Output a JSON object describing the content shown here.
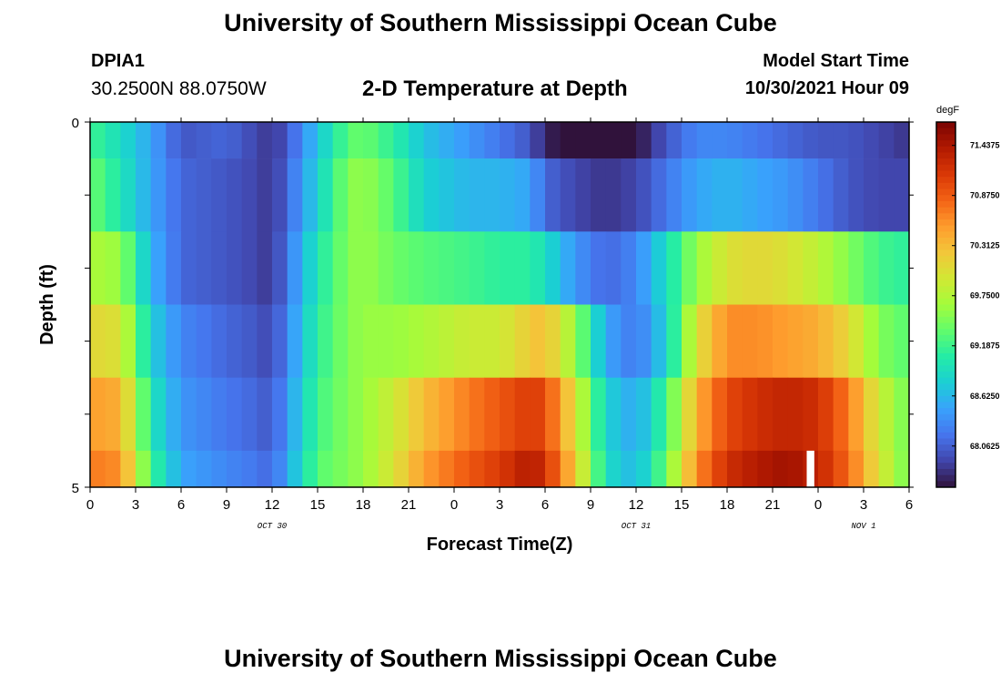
{
  "header": {
    "title": "University of Southern Mississippi Ocean Cube",
    "station": "DPIA1",
    "coords": "30.2500N  88.0750W",
    "subtitle": "2-D Temperature at Depth",
    "model_start_label": "Model Start Time",
    "model_start_value": "10/30/2021 Hour 09"
  },
  "footer": {
    "title": "University of Southern Mississippi Ocean Cube"
  },
  "chart_data": {
    "type": "heatmap",
    "title": "2-D Temperature at Depth",
    "xlabel": "Forecast Time(Z)",
    "ylabel": "Depth (ft)",
    "x_tick_labels": [
      "0",
      "3",
      "6",
      "9",
      "12",
      "15",
      "18",
      "21",
      "0",
      "3",
      "6",
      "9",
      "12",
      "15",
      "18",
      "21",
      "0",
      "3",
      "6"
    ],
    "x_day_labels": [
      {
        "label": "OCT 30",
        "hour": 12
      },
      {
        "label": "OCT 31",
        "hour": 36
      },
      {
        "label": "NOV 1",
        "hour": 51
      }
    ],
    "xlim": [
      0,
      54
    ],
    "y_tick_labels": [
      "0",
      "5"
    ],
    "ylim": [
      0,
      5
    ],
    "colorbar": {
      "unit": "degF",
      "labels": [
        "71.4375",
        "70.8750",
        "70.3125",
        "69.7500",
        "69.1875",
        "68.6250",
        "68.0625"
      ],
      "range": [
        67.6,
        71.7
      ],
      "colors": [
        "#30123b",
        "#4145ab",
        "#4675ed",
        "#39a2fc",
        "#1bcfd4",
        "#24eca6",
        "#61fc6c",
        "#a4fc3b",
        "#d1e834",
        "#f3c63a",
        "#fe9b2d",
        "#f36315",
        "#d93806",
        "#b11901",
        "#7a0403"
      ]
    },
    "depth_layers": [
      0,
      1,
      2,
      3,
      4,
      5
    ],
    "gap": {
      "hour": 47.5,
      "layer": 5,
      "width_hours": 0.5
    },
    "series": [
      {
        "depth_index": 0,
        "t": [
          0,
          2,
          4,
          6,
          9,
          11,
          12,
          13,
          15,
          17,
          18,
          20,
          22,
          25,
          27,
          29,
          30,
          32,
          34,
          36,
          38,
          40,
          42,
          44,
          46,
          48,
          50,
          52,
          54
        ],
        "values": [
          69.2,
          68.9,
          68.5,
          68.0,
          68.1,
          67.9,
          67.8,
          68.0,
          68.7,
          69.3,
          69.4,
          69.1,
          68.7,
          68.4,
          68.2,
          68.0,
          67.7,
          67.5,
          67.4,
          67.6,
          68.0,
          68.3,
          68.3,
          68.2,
          68.1,
          68.0,
          68.0,
          67.9,
          67.8
        ]
      },
      {
        "depth_index": 1,
        "t": [
          0,
          2,
          4,
          6,
          9,
          11,
          12,
          13,
          15,
          17,
          18,
          20,
          22,
          25,
          27,
          29,
          30,
          32,
          34,
          36,
          38,
          40,
          42,
          44,
          46,
          48,
          50,
          52,
          54
        ],
        "values": [
          69.4,
          69.0,
          68.5,
          68.1,
          68.0,
          67.9,
          67.8,
          68.1,
          68.8,
          69.5,
          69.6,
          69.3,
          68.8,
          68.6,
          68.6,
          68.5,
          68.1,
          67.9,
          67.8,
          67.9,
          68.2,
          68.5,
          68.6,
          68.5,
          68.4,
          68.2,
          68.0,
          67.9,
          67.9
        ]
      },
      {
        "depth_index": 2,
        "t": [
          0,
          2,
          4,
          6,
          9,
          11,
          12,
          13,
          15,
          17,
          18,
          20,
          22,
          25,
          27,
          29,
          30,
          32,
          34,
          36,
          38,
          40,
          42,
          44,
          46,
          48,
          50,
          52,
          54
        ],
        "values": [
          69.7,
          69.6,
          68.6,
          68.1,
          68.0,
          67.9,
          67.8,
          68.2,
          69.0,
          69.5,
          69.6,
          69.4,
          69.3,
          69.2,
          69.1,
          69.1,
          68.9,
          68.4,
          68.1,
          68.3,
          68.9,
          69.6,
          70.0,
          70.1,
          70.0,
          69.8,
          69.5,
          69.2,
          69.1
        ]
      },
      {
        "depth_index": 3,
        "t": [
          0,
          2,
          4,
          6,
          9,
          11,
          12,
          13,
          15,
          17,
          18,
          20,
          22,
          25,
          27,
          29,
          30,
          32,
          34,
          36,
          38,
          40,
          42,
          44,
          46,
          48,
          50,
          52,
          54
        ],
        "values": [
          70.1,
          70.0,
          68.8,
          68.3,
          68.1,
          68.0,
          67.9,
          68.3,
          69.1,
          69.5,
          69.6,
          69.6,
          69.7,
          69.9,
          69.9,
          70.2,
          70.3,
          69.6,
          68.5,
          68.2,
          68.8,
          70.0,
          70.6,
          70.6,
          70.5,
          70.4,
          70.1,
          69.5,
          69.3
        ]
      },
      {
        "depth_index": 4,
        "t": [
          0,
          2,
          4,
          6,
          9,
          11,
          12,
          13,
          15,
          17,
          18,
          20,
          22,
          25,
          27,
          29,
          30,
          32,
          34,
          36,
          38,
          40,
          42,
          44,
          46,
          48,
          50,
          52,
          54
        ],
        "values": [
          70.5,
          70.4,
          69.0,
          68.4,
          68.2,
          68.1,
          68.0,
          68.4,
          69.2,
          69.5,
          69.6,
          69.9,
          70.3,
          70.7,
          70.9,
          71.1,
          71.0,
          70.0,
          68.8,
          68.5,
          69.2,
          70.4,
          71.0,
          71.2,
          71.3,
          71.2,
          70.7,
          69.9,
          69.4
        ]
      },
      {
        "depth_index": 5,
        "t": [
          0,
          2,
          4,
          6,
          9,
          11,
          12,
          13,
          15,
          17,
          18,
          20,
          22,
          25,
          27,
          29,
          30,
          32,
          34,
          36,
          38,
          40,
          42,
          44,
          46,
          48,
          50,
          52,
          54
        ],
        "values": [
          70.7,
          70.6,
          69.2,
          68.5,
          68.3,
          68.2,
          68.1,
          68.5,
          69.3,
          69.5,
          69.6,
          70.0,
          70.5,
          70.9,
          71.1,
          71.4,
          71.2,
          70.2,
          68.9,
          68.6,
          69.4,
          70.6,
          71.2,
          71.4,
          71.5,
          71.3,
          70.8,
          70.0,
          69.4
        ]
      }
    ]
  }
}
